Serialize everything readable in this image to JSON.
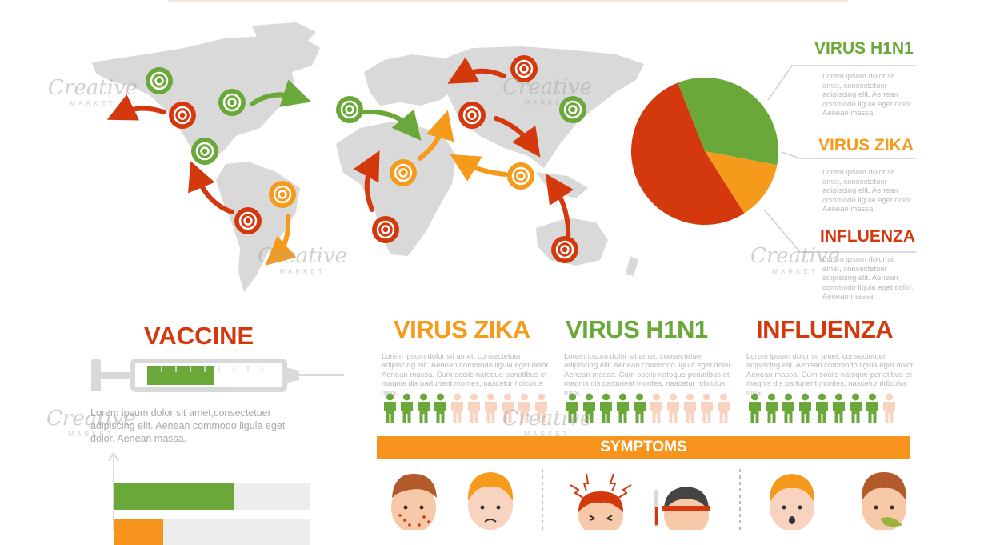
{
  "legend": [
    {
      "title": "VIRUS H1N1",
      "text": "Lorem ipsum dolor sit amet, consectetuer adipiscing elit. Aenean commodo ligula eget dolor. Aenean massa."
    },
    {
      "title": "VIRUS ZIKA",
      "text": "Lorem ipsum dolor sit amet, consectetuer adipiscing elit. Aenean commodo ligula eget dolor. Aenean massa."
    },
    {
      "title": "INFLUENZA",
      "text": "Lorem ipsum dolor sit amet, consectetuer adipiscing elit. Aenean commodo ligula eget dolor. Aenean massa."
    }
  ],
  "pie": {
    "slices": [
      {
        "label": "VIRUS H1N1",
        "fraction": 0.34,
        "color": "#6aa83a"
      },
      {
        "label": "VIRUS ZIKA",
        "fraction": 0.13,
        "color": "#f59a1b"
      },
      {
        "label": "INFLUENZA",
        "fraction": 0.53,
        "color": "#d4380d"
      }
    ]
  },
  "vaccine": {
    "title": "VACCINE",
    "text": "Lorem ipsum dolor sit amet,consectetuer adipiscing elit. Aenean commodo ligula eget dolor. Aenean massa.",
    "syringe_fill": 0.34,
    "bars": [
      {
        "fraction": 0.61,
        "color": "#6aa83a"
      },
      {
        "fraction": 0.25,
        "color": "#f7941d"
      }
    ]
  },
  "columns": [
    {
      "title": "VIRUS ZIKA",
      "text": "Lorem ipsum dolor sit amet, consectetuer adipiscing elit. Aenean commodo ligula eget dolor. Aenean massa. Cum sociis natoque penatibus et magnis dis parturient montes, nascetur ridiculus mus.",
      "infected": 4,
      "total": 10
    },
    {
      "title": "VIRUS H1N1",
      "text": "Lorem ipsum dolor sit amet, consectetuer adipiscing elit. Aenean commodo ligula eget dolor. Aenean massa. Cum sociis natoque penatibus et magnis dis parturient montes, nascetur ridiculus mus.",
      "infected": 5,
      "total": 10
    },
    {
      "title": "INFLUENZA",
      "text": "Lorem ipsum dolor sit amet, consectetuer adipiscing elit. Aenean commodo ligula eget dolor. Aenean massa. Cum sociis natoque penatibus et magnis dis parturient montes, nascetur ridiculus mus.",
      "infected": 8,
      "total": 9
    }
  ],
  "colors": {
    "green": "#6aa83a",
    "orange": "#f59a1b",
    "red": "#d4380d",
    "gray": "#d6d6d6",
    "skin": "#f8d3bf"
  },
  "symptoms": {
    "title": "SYMPTOMS"
  },
  "watermark": {
    "brand": "Creative",
    "sub": "MARKET"
  },
  "map_markers": [
    {
      "type": "h1n1"
    },
    {
      "type": "flu"
    },
    {
      "type": "h1n1"
    },
    {
      "type": "h1n1"
    },
    {
      "type": "flu"
    },
    {
      "type": "zika"
    },
    {
      "type": "h1n1"
    },
    {
      "type": "flu"
    },
    {
      "type": "flu"
    },
    {
      "type": "zika"
    },
    {
      "type": "flu"
    },
    {
      "type": "zika"
    },
    {
      "type": "h1n1"
    },
    {
      "type": "flu"
    }
  ]
}
